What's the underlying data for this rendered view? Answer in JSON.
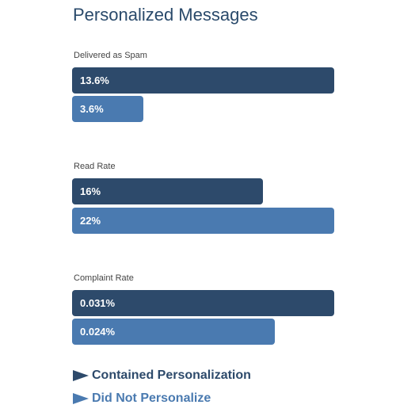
{
  "colors": {
    "contained": "#2d4a6b",
    "not_personalize": "#4a7ab0",
    "title": "#2a4a6b"
  },
  "chart_data": {
    "type": "bar",
    "orientation": "horizontal",
    "title": "Personalized Messages",
    "categories": [
      "Delivered as Spam",
      "Read Rate",
      "Complaint Rate"
    ],
    "series": [
      {
        "name": "Contained Personalization",
        "values": [
          13.6,
          16,
          0.031
        ],
        "labels": [
          "13.6%",
          "16%",
          "0.031%"
        ],
        "color": "#2d4a6b"
      },
      {
        "name": "Did Not Personalize",
        "values": [
          3.6,
          22,
          0.024
        ],
        "labels": [
          "3.6%",
          "22%",
          "0.024%"
        ],
        "color": "#4a7ab0"
      }
    ],
    "legend_position": "bottom-left",
    "grid": false
  }
}
